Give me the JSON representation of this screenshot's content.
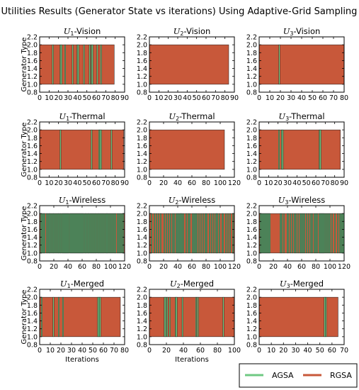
{
  "figure": {
    "title": "Utilities Results (Generator State vs iterations) Using Adaptive-Grid Sampling",
    "ylabel": "Generator Type",
    "xlabel": "Iterations",
    "legend_position": "bottom-right"
  },
  "legend": [
    {
      "label": "AGSA",
      "color": "#6fc983"
    },
    {
      "label": "RGSA",
      "color": "#c8583a"
    }
  ],
  "colors": {
    "agsa": "#6fc983",
    "rgsa": "#c8583a"
  },
  "chart_data": [
    {
      "type": "bar",
      "title_sub": "1",
      "title_name": "-Vision",
      "xlim": [
        0,
        90
      ],
      "ylim": [
        0.8,
        2.2
      ],
      "xticks": [
        0,
        10,
        20,
        30,
        40,
        50,
        60,
        70,
        80,
        90
      ],
      "yticks": [
        0.8,
        1.0,
        1.2,
        1.4,
        1.6,
        1.8,
        2.0,
        2.2
      ],
      "xlabel": "",
      "ylabel": "Generator Type",
      "grid": false,
      "rgsa_end": 79,
      "agsa_iterations": [
        14,
        22,
        23,
        27,
        35,
        40,
        41,
        47,
        53,
        55,
        56,
        61,
        65
      ]
    },
    {
      "type": "bar",
      "title_sub": "2",
      "title_name": "-Vision",
      "xlim": [
        0,
        90
      ],
      "ylim": [
        0.8,
        2.2
      ],
      "xticks": [
        0,
        10,
        20,
        30,
        40,
        50,
        60,
        70,
        80,
        90
      ],
      "yticks": [
        0.8,
        1.0,
        1.2,
        1.4,
        1.6,
        1.8,
        2.0,
        2.2
      ],
      "xlabel": "",
      "ylabel": "",
      "grid": false,
      "rgsa_end": 84,
      "agsa_iterations": []
    },
    {
      "type": "bar",
      "title_sub": "3",
      "title_name": "-Vision",
      "xlim": [
        0,
        80
      ],
      "ylim": [
        0.8,
        2.2
      ],
      "xticks": [
        0,
        10,
        20,
        30,
        40,
        50,
        60,
        70,
        80
      ],
      "yticks": [
        0.8,
        1.0,
        1.2,
        1.4,
        1.6,
        1.8,
        2.0,
        2.2
      ],
      "xlabel": "",
      "ylabel": "",
      "grid": false,
      "rgsa_end": 80,
      "agsa_iterations": [
        19
      ]
    },
    {
      "type": "bar",
      "title_sub": "1",
      "title_name": "-Thermal",
      "xlim": [
        0,
        90
      ],
      "ylim": [
        0.8,
        2.2
      ],
      "xticks": [
        0,
        10,
        20,
        30,
        40,
        50,
        60,
        70,
        80,
        90
      ],
      "yticks": [
        0.8,
        1.0,
        1.2,
        1.4,
        1.6,
        1.8,
        2.0,
        2.2
      ],
      "xlabel": "",
      "ylabel": "Generator Type",
      "grid": false,
      "rgsa_end": 89,
      "agsa_iterations": [
        22,
        55,
        63,
        64,
        65,
        76
      ]
    },
    {
      "type": "bar",
      "title_sub": "2",
      "title_name": "-Thermal",
      "xlim": [
        0,
        120
      ],
      "ylim": [
        0.8,
        2.2
      ],
      "xticks": [
        0,
        20,
        40,
        60,
        80,
        100,
        120
      ],
      "yticks": [
        0.8,
        1.0,
        1.2,
        1.4,
        1.6,
        1.8,
        2.0,
        2.2
      ],
      "xlabel": "",
      "ylabel": "",
      "grid": false,
      "rgsa_end": 106,
      "agsa_iterations": []
    },
    {
      "type": "bar",
      "title_sub": "3",
      "title_name": "-Thermal",
      "xlim": [
        0,
        90
      ],
      "ylim": [
        0.8,
        2.2
      ],
      "xticks": [
        0,
        10,
        20,
        30,
        40,
        50,
        60,
        70,
        80,
        90
      ],
      "yticks": [
        0.8,
        1.0,
        1.2,
        1.4,
        1.6,
        1.8,
        2.0,
        2.2
      ],
      "xlabel": "",
      "ylabel": "",
      "grid": false,
      "rgsa_end": 86,
      "agsa_iterations": [
        21,
        24,
        25,
        64,
        65
      ]
    },
    {
      "type": "bar",
      "title_sub": "1",
      "title_name": "-Wireless",
      "xlim": [
        0,
        120
      ],
      "ylim": [
        0.8,
        2.2
      ],
      "xticks": [
        0,
        20,
        40,
        60,
        80,
        100,
        120
      ],
      "yticks": [
        0.8,
        1.0,
        1.2,
        1.4,
        1.6,
        1.8,
        2.0,
        2.2
      ],
      "xlabel": "",
      "ylabel": "Generator Type",
      "grid": false,
      "rgsa_end": 120,
      "agsa_iterations": [
        2,
        3,
        4,
        5,
        6,
        7,
        10,
        11,
        13,
        14,
        15,
        17,
        19,
        20,
        22,
        24,
        26,
        27,
        29,
        30,
        32,
        33,
        34,
        35,
        36,
        37,
        38,
        39,
        40,
        41,
        43,
        44,
        45,
        46,
        47,
        48,
        49,
        50,
        51,
        52,
        53,
        54,
        55,
        56,
        57,
        58,
        59,
        60,
        61,
        62,
        64,
        65,
        66,
        68,
        69,
        70,
        72,
        73,
        75,
        76,
        78,
        79,
        81,
        83,
        84,
        86,
        87,
        89,
        90,
        92,
        94,
        95,
        96,
        98,
        100,
        102,
        104,
        106,
        107,
        110,
        112,
        114,
        116,
        118
      ]
    },
    {
      "type": "bar",
      "title_sub": "2",
      "title_name": "-Wireless",
      "xlim": [
        0,
        120
      ],
      "ylim": [
        0.8,
        2.2
      ],
      "xticks": [
        0,
        20,
        40,
        60,
        80,
        100,
        120
      ],
      "yticks": [
        0.8,
        1.0,
        1.2,
        1.4,
        1.6,
        1.8,
        2.0,
        2.2
      ],
      "xlabel": "",
      "ylabel": "",
      "grid": false,
      "rgsa_end": 120,
      "agsa_iterations": [
        3,
        7,
        10,
        13,
        16,
        21,
        24,
        27,
        30,
        33,
        35,
        38,
        40,
        41,
        43,
        44,
        45,
        46,
        48,
        52,
        55,
        57,
        61,
        63,
        65,
        67,
        70,
        73,
        76,
        79,
        81,
        85,
        88,
        91,
        94,
        95,
        96,
        99,
        103,
        104,
        108,
        111,
        114,
        118
      ]
    },
    {
      "type": "bar",
      "title_sub": "3",
      "title_name": "-Wireless",
      "xlim": [
        0,
        120
      ],
      "ylim": [
        0.8,
        2.2
      ],
      "xticks": [
        0,
        20,
        40,
        60,
        80,
        100,
        120
      ],
      "yticks": [
        0.8,
        1.0,
        1.2,
        1.4,
        1.6,
        1.8,
        2.0,
        2.2
      ],
      "xlabel": "",
      "ylabel": "",
      "grid": false,
      "rgsa_end": 120,
      "agsa_iterations": [
        2,
        3,
        4,
        5,
        6,
        7,
        8,
        9,
        10,
        11,
        12,
        13,
        14,
        15,
        30,
        32,
        35,
        40,
        41,
        44,
        47,
        50,
        52,
        55,
        58,
        60,
        62,
        64,
        67,
        70,
        73,
        75,
        78,
        80,
        82,
        85,
        86,
        87,
        88,
        89,
        90,
        91,
        92,
        94,
        96,
        98,
        100,
        103,
        107,
        111,
        114,
        116,
        117,
        118,
        119
      ]
    },
    {
      "type": "bar",
      "title_sub": "1",
      "title_name": "-Merged",
      "xlim": [
        0,
        80
      ],
      "ylim": [
        0.8,
        2.2
      ],
      "xticks": [
        0,
        10,
        20,
        30,
        40,
        50,
        60,
        70,
        80
      ],
      "yticks": [
        0.8,
        1.0,
        1.2,
        1.4,
        1.6,
        1.8,
        2.0,
        2.2
      ],
      "xlabel": "Iterations",
      "ylabel": "Generator Type",
      "grid": false,
      "rgsa_end": 76,
      "agsa_iterations": [
        2,
        13,
        18,
        22,
        55,
        56,
        57
      ]
    },
    {
      "type": "bar",
      "title_sub": "2",
      "title_name": "-Merged",
      "xlim": [
        0,
        100
      ],
      "ylim": [
        0.8,
        2.2
      ],
      "xticks": [
        0,
        20,
        40,
        60,
        80,
        100
      ],
      "yticks": [
        0.8,
        1.0,
        1.2,
        1.4,
        1.6,
        1.8,
        2.0,
        2.2
      ],
      "xlabel": "Iterations",
      "ylabel": "",
      "grid": false,
      "rgsa_end": 100,
      "agsa_iterations": [
        18,
        19,
        21,
        24,
        31,
        32,
        39,
        55,
        57,
        87
      ]
    },
    {
      "type": "bar",
      "title_sub": "3",
      "title_name": "-Merged",
      "xlim": [
        0,
        70
      ],
      "ylim": [
        0.8,
        2.2
      ],
      "xticks": [
        0,
        10,
        20,
        30,
        40,
        50,
        60,
        70
      ],
      "yticks": [
        0.8,
        1.0,
        1.2,
        1.4,
        1.6,
        1.8,
        2.0,
        2.2
      ],
      "xlabel": "",
      "ylabel": "",
      "grid": false,
      "rgsa_end": 65,
      "agsa_iterations": [
        54,
        55
      ]
    }
  ]
}
